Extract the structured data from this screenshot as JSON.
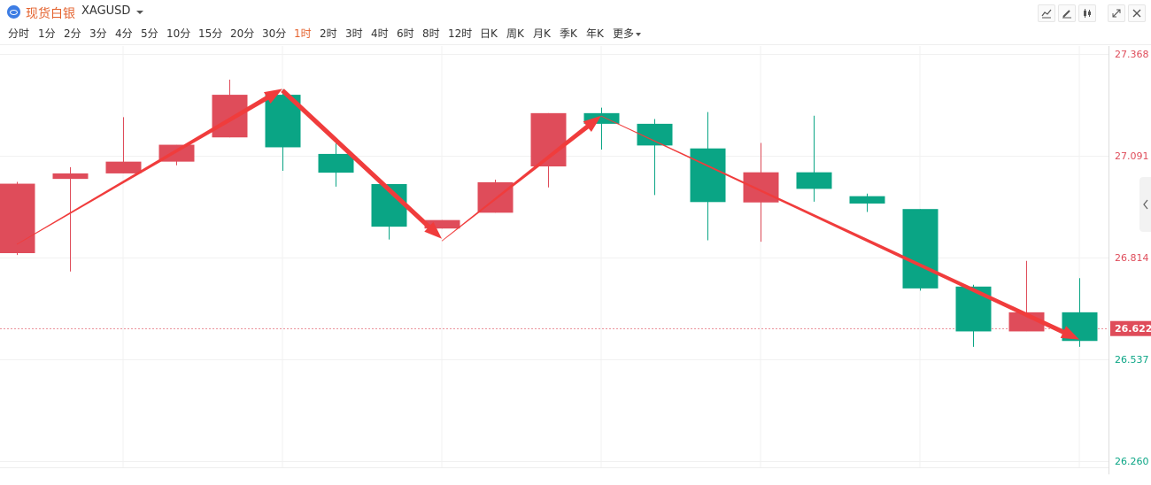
{
  "header": {
    "symbol_name": "现货白银",
    "symbol_code": "XAGUSD",
    "icons": [
      "indicator-icon",
      "draw-icon",
      "candle-type-icon",
      "fullscreen-icon",
      "close-icon"
    ]
  },
  "periods": {
    "items": [
      "分时",
      "1分",
      "2分",
      "3分",
      "4分",
      "5分",
      "10分",
      "15分",
      "20分",
      "30分",
      "1时",
      "2时",
      "3时",
      "4时",
      "6时",
      "8时",
      "12时",
      "日K",
      "周K",
      "月K",
      "季K",
      "年K",
      "更多"
    ],
    "active": "1时"
  },
  "colors": {
    "up": "#df4c5a",
    "down": "#0aa585",
    "arrow": "#f03c3c",
    "current_price_bg": "#df4c5a",
    "grid": "#f1f1f1",
    "up_label": "#df4c5a",
    "down_label": "#0aa585"
  },
  "chart_data": {
    "type": "candlestick",
    "y_ticks": [
      27.368,
      27.091,
      26.814,
      26.537,
      26.26
    ],
    "y_range": [
      26.26,
      27.368
    ],
    "current_price": 26.622,
    "candles": [
      {
        "open": 26.826,
        "close": 27.015,
        "high": 27.02,
        "low": 26.821
      },
      {
        "open": 27.028,
        "close": 27.043,
        "high": 27.06,
        "low": 26.776
      },
      {
        "open": 27.043,
        "close": 27.075,
        "high": 27.196,
        "low": 27.043
      },
      {
        "open": 27.075,
        "close": 27.121,
        "high": 27.121,
        "low": 27.065
      },
      {
        "open": 27.141,
        "close": 27.257,
        "high": 27.298,
        "low": 27.141
      },
      {
        "open": 27.257,
        "close": 27.114,
        "high": 27.271,
        "low": 27.05
      },
      {
        "open": 27.096,
        "close": 27.045,
        "high": 27.124,
        "low": 27.007
      },
      {
        "open": 27.014,
        "close": 26.898,
        "high": 27.014,
        "low": 26.863
      },
      {
        "open": 26.893,
        "close": 26.916,
        "high": 26.916,
        "low": 26.893
      },
      {
        "open": 26.936,
        "close": 27.019,
        "high": 27.026,
        "low": 26.936
      },
      {
        "open": 27.062,
        "close": 27.207,
        "high": 27.207,
        "low": 27.005
      },
      {
        "open": 27.207,
        "close": 27.178,
        "high": 27.222,
        "low": 27.108
      },
      {
        "open": 27.178,
        "close": 27.119,
        "high": 27.191,
        "low": 26.984
      },
      {
        "open": 27.111,
        "close": 26.965,
        "high": 27.21,
        "low": 26.861
      },
      {
        "open": 26.964,
        "close": 27.046,
        "high": 27.126,
        "low": 26.857
      },
      {
        "open": 27.046,
        "close": 27.001,
        "high": 27.2,
        "low": 26.966
      },
      {
        "open": 26.981,
        "close": 26.961,
        "high": 26.988,
        "low": 26.938
      },
      {
        "open": 26.946,
        "close": 26.73,
        "high": 26.946,
        "low": 26.724
      },
      {
        "open": 26.735,
        "close": 26.613,
        "high": 26.74,
        "low": 26.571
      },
      {
        "open": 26.613,
        "close": 26.665,
        "high": 26.805,
        "low": 26.613
      },
      {
        "open": 26.665,
        "close": 26.587,
        "high": 26.758,
        "low": 26.571
      }
    ],
    "arrows": [
      {
        "from_index": 0,
        "from_value": 26.85,
        "to_index": 5,
        "to_value": 27.273,
        "style": "thin-to-thick"
      },
      {
        "from_index": 5,
        "from_value": 27.269,
        "to_index": 8,
        "to_value": 26.865,
        "style": "thick"
      },
      {
        "from_index": 8,
        "from_value": 26.859,
        "to_index": 11,
        "to_value": 27.2,
        "style": "thin-to-thick"
      },
      {
        "from_index": 11,
        "from_value": 27.199,
        "to_index": 20,
        "to_value": 26.591,
        "style": "thin-to-thick"
      }
    ]
  }
}
